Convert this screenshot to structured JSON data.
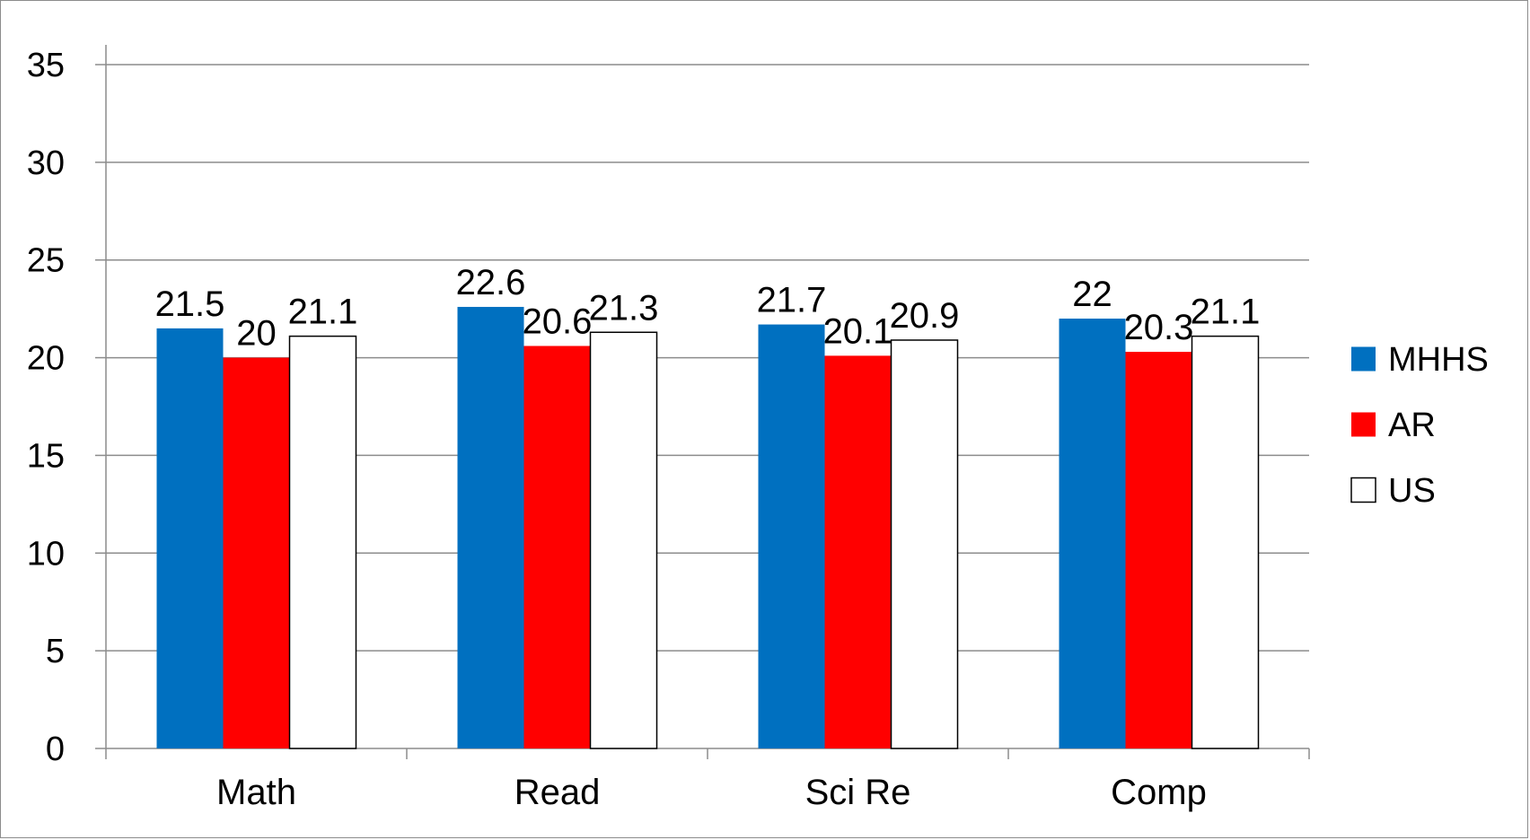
{
  "chart_data": {
    "type": "bar",
    "title": "",
    "xlabel": "",
    "ylabel": "",
    "ylim": [
      0,
      35
    ],
    "yticks": [
      0,
      5,
      10,
      15,
      20,
      25,
      30,
      35
    ],
    "grid": true,
    "legend_position": "right",
    "categories": [
      "Math",
      "Read",
      "Sci Re",
      "Comp"
    ],
    "series": [
      {
        "name": "MHHS",
        "color": "#0070C0",
        "values": [
          21.5,
          22.6,
          21.7,
          22
        ]
      },
      {
        "name": "AR",
        "color": "#FF0000",
        "values": [
          20,
          20.6,
          20.1,
          20.3
        ]
      },
      {
        "name": "US",
        "color": "#FFFFFF",
        "values": [
          21.1,
          21.3,
          20.9,
          21.1
        ]
      }
    ]
  }
}
